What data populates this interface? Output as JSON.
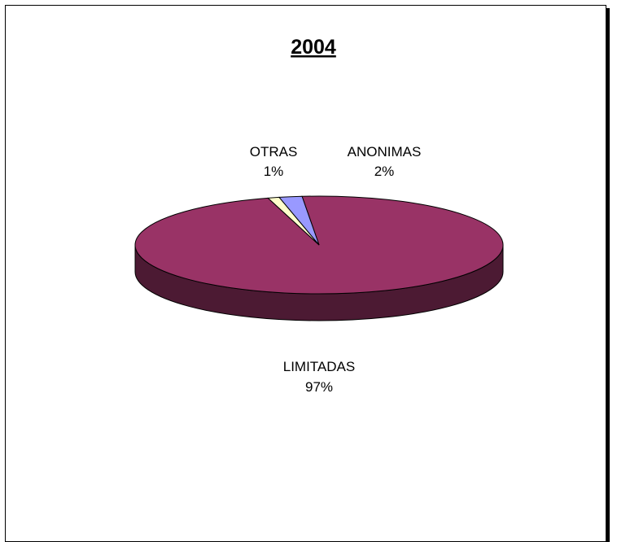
{
  "chart_data": {
    "type": "pie",
    "title": "2004",
    "style": "3d",
    "slices": [
      {
        "label": "LIMITADAS",
        "value": 97,
        "value_label": "97%",
        "color": "#993366",
        "side_color": "#4c1a33"
      },
      {
        "label": "OTRAS",
        "value": 1,
        "value_label": "1%",
        "color": "#ffffcc",
        "side_color": "#7f7f66"
      },
      {
        "label": "ANONIMAS",
        "value": 2,
        "value_label": "2%",
        "color": "#9999ff",
        "side_color": "#4c4c7f"
      }
    ]
  }
}
